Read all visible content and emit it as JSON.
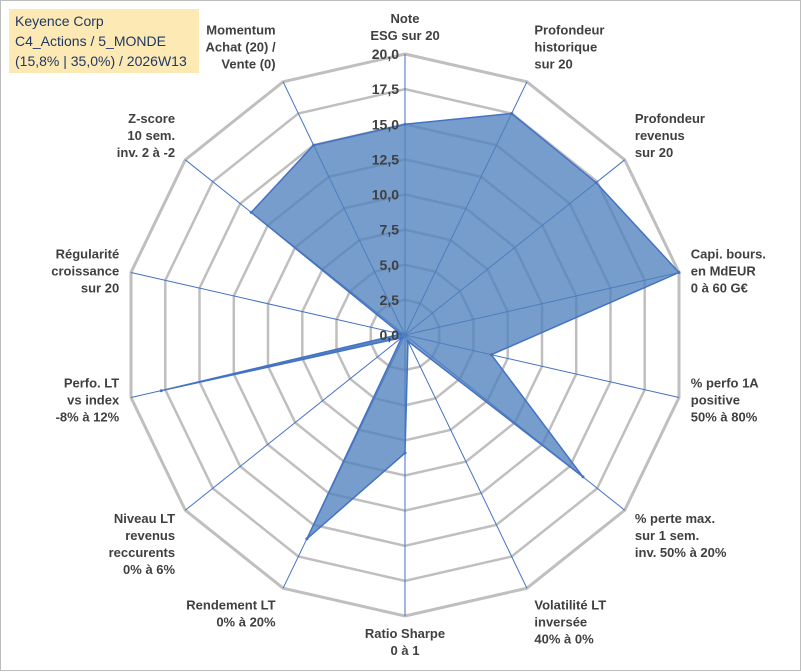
{
  "title_box": {
    "line1": "Keyence Corp",
    "line2": "C4_Actions / 5_MONDE",
    "line3": "(15,8% | 35,0%) / 2026W13"
  },
  "colors": {
    "fill": "#4f81bd",
    "stroke": "#4472c4",
    "grid": "#bfbfbf",
    "spoke": "#4472c4",
    "title_bg": "#fde9b4"
  },
  "chart_data": {
    "type": "radar",
    "title": "Keyence Corp",
    "axes": [
      [
        "Note",
        "ESG sur 20"
      ],
      [
        "Profondeur",
        "historique",
        "sur 20"
      ],
      [
        "Profondeur",
        "revenus",
        "sur 20"
      ],
      [
        "Capi. bours.",
        "en MdEUR",
        "0 à 60 G€"
      ],
      [
        "% perfo 1A",
        "positive",
        "50% à 80%"
      ],
      [
        "% perte max.",
        "sur 1 sem.",
        "inv. 50% à 20%"
      ],
      [
        "Volatilité LT",
        "inversée",
        "40% à 0%"
      ],
      [
        "Ratio Sharpe",
        "0 à 1"
      ],
      [
        "Rendement LT",
        "0% à 20%"
      ],
      [
        "Niveau LT",
        "revenus",
        "reccurents",
        "0% à 6%"
      ],
      [
        "Perfo. LT",
        "vs index",
        "-8% à 12%"
      ],
      [
        "Régularité",
        "croissance",
        "sur 20"
      ],
      [
        "Z-score",
        "10 sem.",
        "inv. 2 à -2"
      ],
      [
        "Momentum",
        "Achat (20) /",
        "Vente (0)"
      ]
    ],
    "series": [
      {
        "name": "Keyence Corp",
        "values": [
          15.0,
          17.5,
          17.4,
          20.0,
          6.3,
          16.2,
          0.5,
          8.4,
          16.1,
          0.3,
          17.8,
          0.3,
          14.0,
          15.0
        ]
      }
    ],
    "rlim": [
      0,
      20
    ],
    "ticks": [
      "0,0",
      "2,5",
      "5,0",
      "7,5",
      "10,0",
      "12,5",
      "15,0",
      "17,5",
      "20,0"
    ],
    "tick_values": [
      0,
      2.5,
      5,
      7.5,
      10,
      12.5,
      15,
      17.5,
      20
    ]
  }
}
